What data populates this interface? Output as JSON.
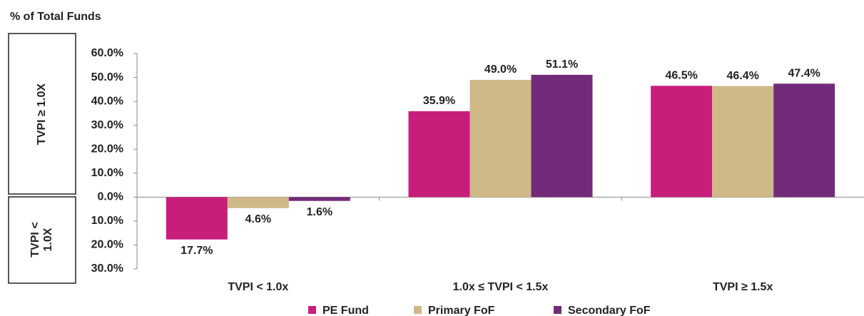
{
  "chart_data": {
    "type": "bar",
    "title": "% of Total Funds",
    "annotations": [
      "TVPI ≥ 1.0X",
      "TVPI < 1.0X"
    ],
    "categories": [
      "TVPI < 1.0x",
      "1.0x ≤ TVPI < 1.5x",
      "TVPI ≥ 1.5x"
    ],
    "series": [
      {
        "name": "PE Fund",
        "color": "#c81e7b",
        "values": [
          -17.7,
          35.9,
          46.5
        ],
        "value_labels": [
          "17.7%",
          "35.9%",
          "46.5%"
        ]
      },
      {
        "name": "Primary FoF",
        "color": "#cfb989",
        "values": [
          -4.6,
          49.0,
          46.4
        ],
        "value_labels": [
          "4.6%",
          "49.0%",
          "46.4%"
        ]
      },
      {
        "name": "Secondary FoF",
        "color": "#722b7a",
        "values": [
          -1.6,
          51.1,
          47.4
        ],
        "value_labels": [
          "1.6%",
          "51.1%",
          "47.4%"
        ]
      }
    ],
    "ylim": [
      -30,
      60
    ],
    "yticks": [
      {
        "value": 60,
        "label": "60.0%"
      },
      {
        "value": 50,
        "label": "50.0%"
      },
      {
        "value": 40,
        "label": "40.0%"
      },
      {
        "value": 30,
        "label": "30.0%"
      },
      {
        "value": 20,
        "label": "20.0%"
      },
      {
        "value": 10,
        "label": "10.0%"
      },
      {
        "value": 0,
        "label": "0.0%"
      },
      {
        "value": -10,
        "label": "10.0%"
      },
      {
        "value": -20,
        "label": "20.0%"
      },
      {
        "value": -30,
        "label": "30.0%"
      }
    ],
    "legend": "bottom"
  }
}
